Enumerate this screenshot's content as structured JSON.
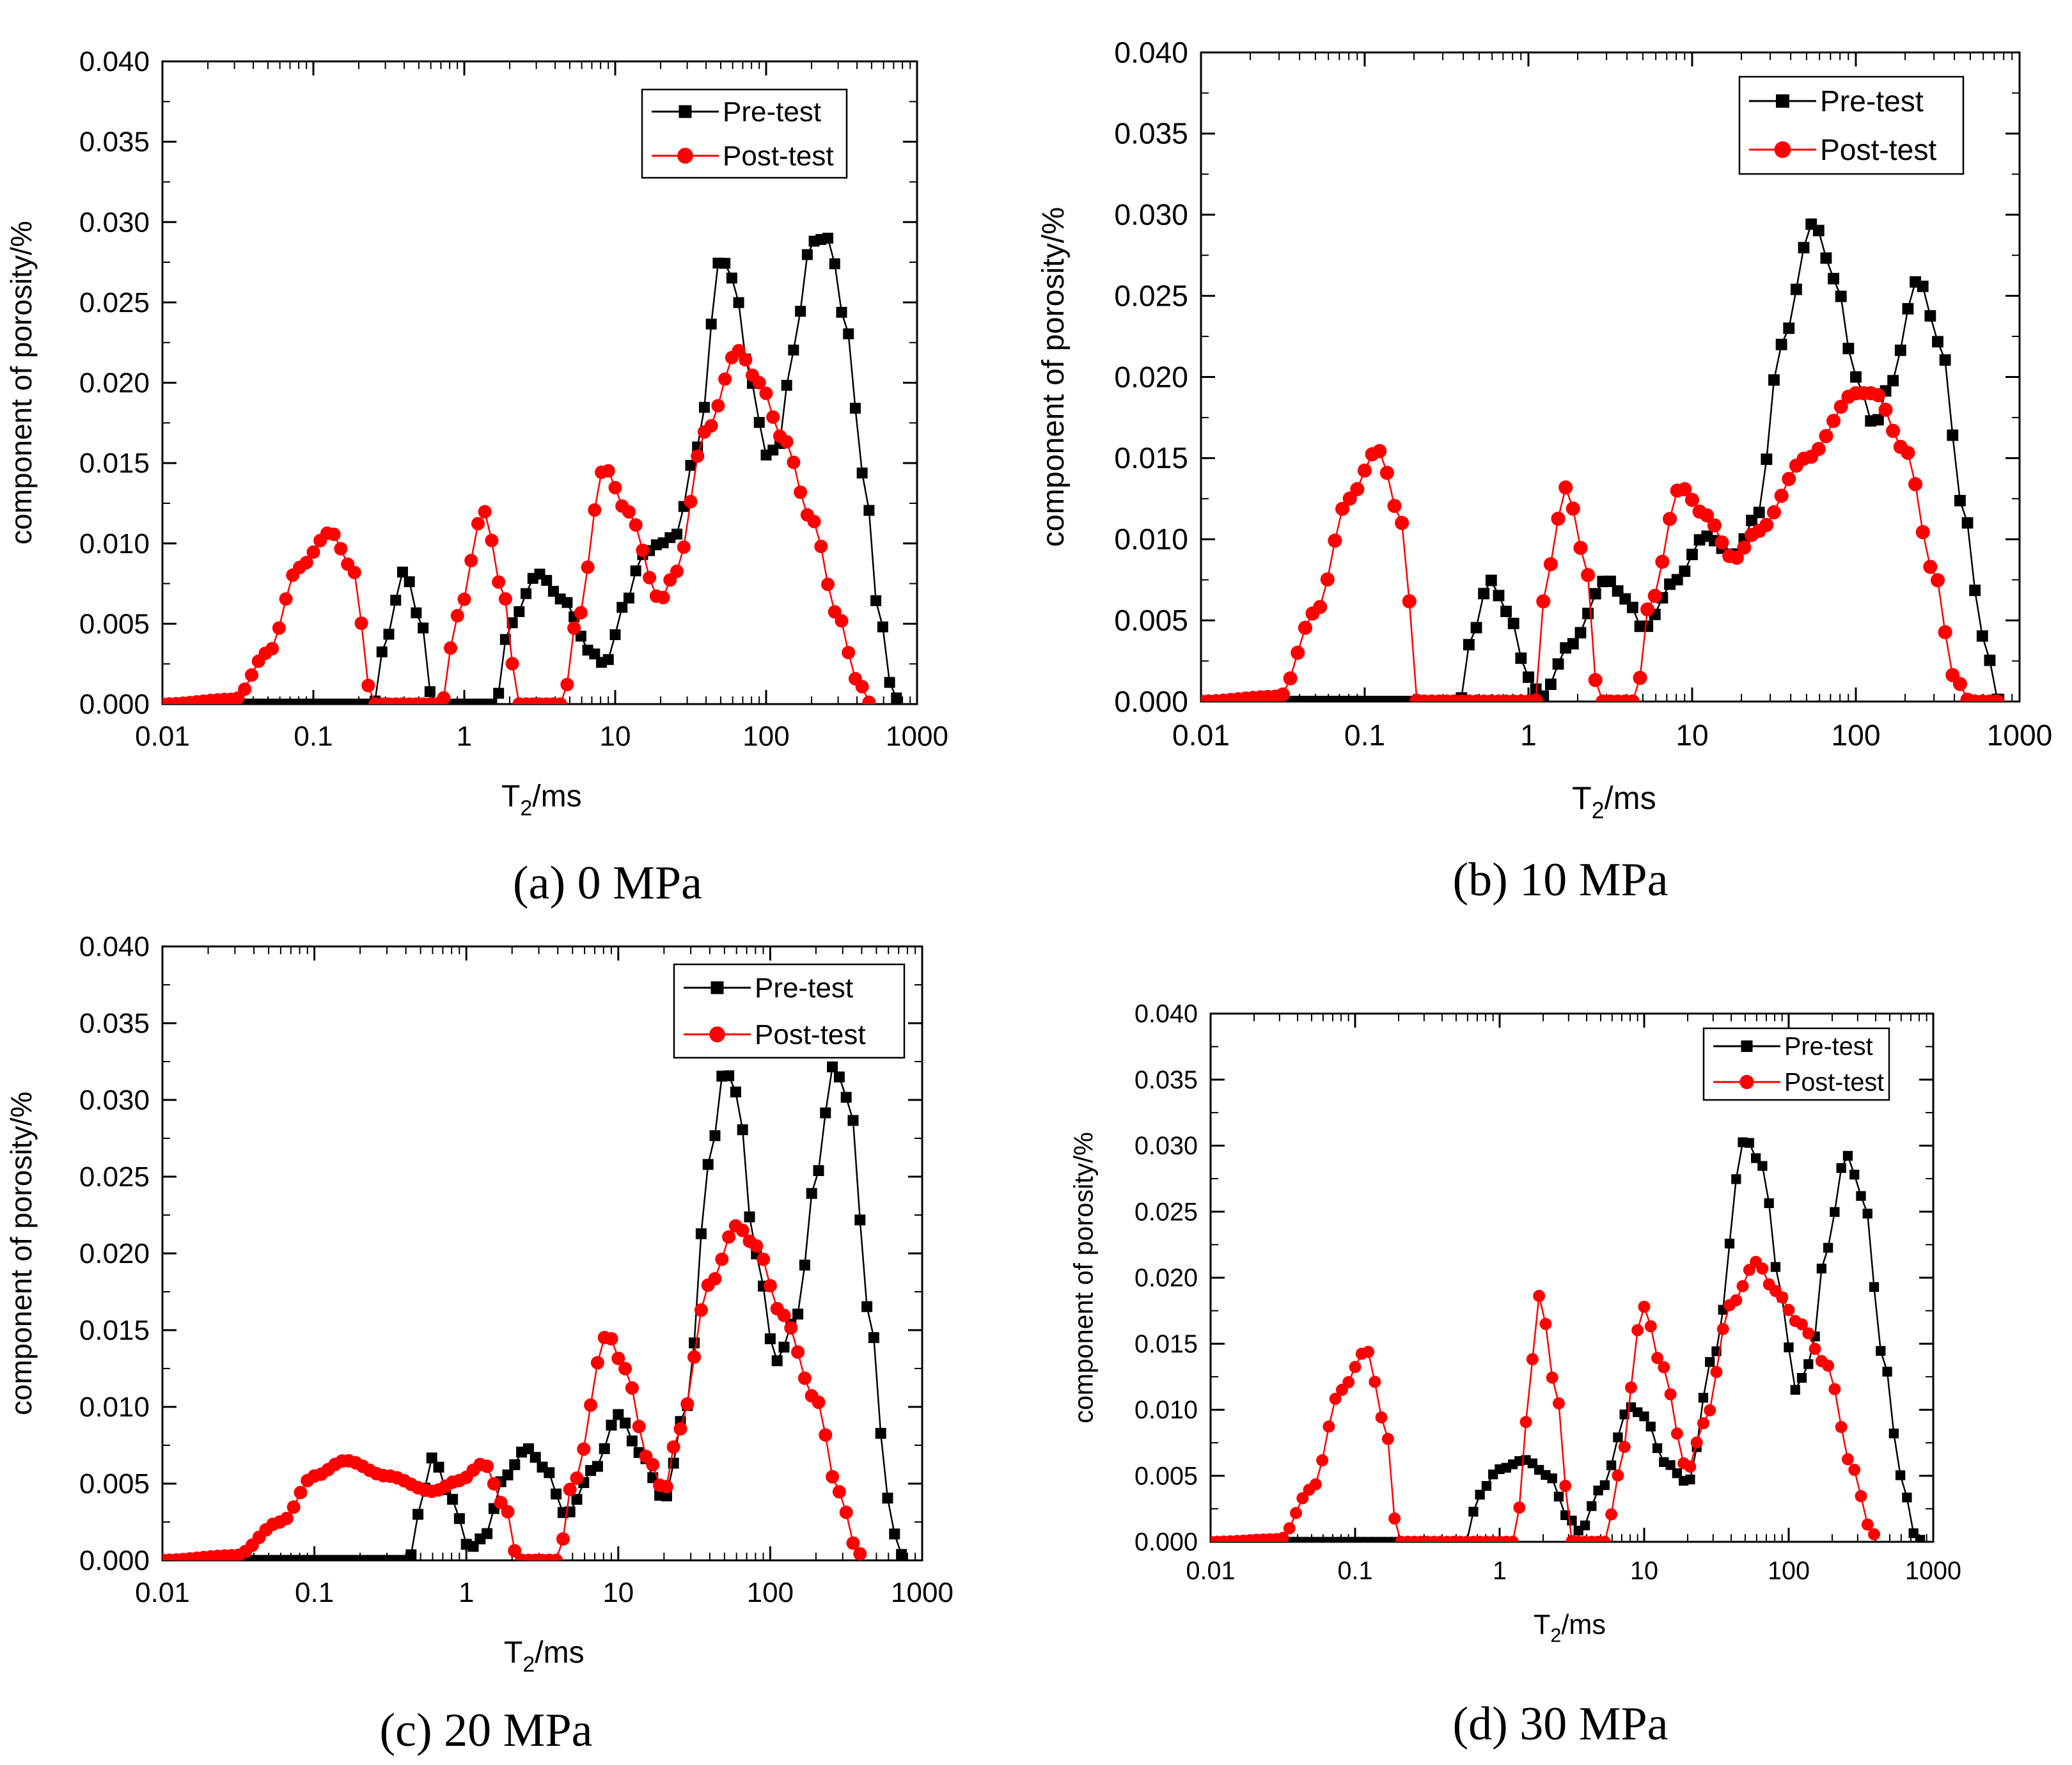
{
  "figure": {
    "colors": {
      "pre": "#000000",
      "post": "#ff0000",
      "axis": "#000000",
      "background": "#ffffff"
    }
  },
  "chart_data": [
    {
      "id": "a",
      "type": "scatter",
      "caption_letter": "(a)",
      "caption_text": " 0 MPa",
      "xlabel_main": "T",
      "xlabel_sub": "2",
      "xlabel_unit": "/ms",
      "ylabel": "component of porosity/%",
      "xscale": "log",
      "xlim": [
        0.01,
        1000
      ],
      "ylim": [
        0,
        0.04
      ],
      "xticks": [
        "0.01",
        "0.1",
        "1",
        "10",
        "100",
        "1000"
      ],
      "yticks": [
        "0.000",
        "0.005",
        "0.010",
        "0.015",
        "0.020",
        "0.025",
        "0.030",
        "0.035",
        "0.040"
      ],
      "legend_position": "top-right",
      "series": [
        {
          "name": "Pre-test",
          "key": "pre",
          "marker": "square",
          "points": [
            [
              0.01,
              0
            ],
            [
              0.25,
              0
            ],
            [
              0.3,
              0.004
            ],
            [
              0.4,
              0.0083
            ],
            [
              0.52,
              0.005
            ],
            [
              0.62,
              0
            ],
            [
              1.6,
              0
            ],
            [
              2.0,
              0.005
            ],
            [
              3.1,
              0.0081
            ],
            [
              4.5,
              0.0065
            ],
            [
              7,
              0.0032
            ],
            [
              8.5,
              0.0025
            ],
            [
              12,
              0.0065
            ],
            [
              15,
              0.0093
            ],
            [
              20,
              0.01
            ],
            [
              25,
              0.0105
            ],
            [
              35,
              0.016
            ],
            [
              50,
              0.0278
            ],
            [
              60,
              0.0265
            ],
            [
              80,
              0.02
            ],
            [
              100,
              0.0155
            ],
            [
              120,
              0.016
            ],
            [
              150,
              0.022
            ],
            [
              200,
              0.0288
            ],
            [
              260,
              0.029
            ],
            [
              330,
              0.024
            ],
            [
              450,
              0.014
            ],
            [
              550,
              0.006
            ],
            [
              700,
              0.0005
            ],
            [
              800,
              0
            ]
          ]
        },
        {
          "name": "Post-test",
          "key": "post",
          "marker": "circle",
          "points": [
            [
              0.01,
              0
            ],
            [
              0.03,
              0.0003
            ],
            [
              0.05,
              0.0032
            ],
            [
              0.08,
              0.0085
            ],
            [
              0.13,
              0.0107
            ],
            [
              0.18,
              0.0085
            ],
            [
              0.25,
              0
            ],
            [
              0.7,
              0
            ],
            [
              0.9,
              0.0055
            ],
            [
              1.35,
              0.012
            ],
            [
              1.8,
              0.007
            ],
            [
              2.3,
              0
            ],
            [
              4.5,
              0
            ],
            [
              5.5,
              0.005
            ],
            [
              8.5,
              0.0147
            ],
            [
              12,
              0.012
            ],
            [
              20,
              0.0065
            ],
            [
              25,
              0.0082
            ],
            [
              40,
              0.017
            ],
            [
              65,
              0.022
            ],
            [
              90,
              0.02
            ],
            [
              130,
              0.0165
            ],
            [
              200,
              0.0115
            ],
            [
              300,
              0.0055
            ],
            [
              400,
              0.0015
            ],
            [
              500,
              0
            ]
          ]
        }
      ]
    },
    {
      "id": "b",
      "type": "scatter",
      "caption_letter": "(b)",
      "caption_text": " 10 MPa",
      "xlabel_main": "T",
      "xlabel_sub": "2",
      "xlabel_unit": "/ms",
      "ylabel": "component of porosity/%",
      "xscale": "log",
      "xlim": [
        0.01,
        1000
      ],
      "ylim": [
        0,
        0.04
      ],
      "xticks": [
        "0.01",
        "0.1",
        "1",
        "10",
        "100",
        "1000"
      ],
      "yticks": [
        "0.000",
        "0.005",
        "0.010",
        "0.015",
        "0.020",
        "0.025",
        "0.030",
        "0.035",
        "0.040"
      ],
      "legend_position": "top-right",
      "series": [
        {
          "name": "Pre-test",
          "key": "pre",
          "marker": "square",
          "points": [
            [
              0.01,
              0
            ],
            [
              0.38,
              0
            ],
            [
              0.45,
              0.004
            ],
            [
              0.58,
              0.0075
            ],
            [
              0.75,
              0.0055
            ],
            [
              1.0,
              0.0015
            ],
            [
              1.2,
              0.0003
            ],
            [
              1.8,
              0.0035
            ],
            [
              3,
              0.0075
            ],
            [
              4,
              0.0063
            ],
            [
              5,
              0.0045
            ],
            [
              8,
              0.0075
            ],
            [
              12,
              0.0102
            ],
            [
              18,
              0.009
            ],
            [
              25,
              0.0115
            ],
            [
              35,
              0.022
            ],
            [
              55,
              0.0295
            ],
            [
              75,
              0.026
            ],
            [
              100,
              0.02
            ],
            [
              130,
              0.017
            ],
            [
              160,
              0.0195
            ],
            [
              240,
              0.026
            ],
            [
              330,
              0.022
            ],
            [
              450,
              0.012
            ],
            [
              600,
              0.004
            ],
            [
              750,
              0
            ]
          ]
        },
        {
          "name": "Post-test",
          "key": "post",
          "marker": "circle",
          "points": [
            [
              0.01,
              0
            ],
            [
              0.03,
              0.0003
            ],
            [
              0.05,
              0.0055
            ],
            [
              0.08,
              0.0125
            ],
            [
              0.12,
              0.0155
            ],
            [
              0.17,
              0.011
            ],
            [
              0.21,
              0
            ],
            [
              1.1,
              0
            ],
            [
              1.3,
              0.008
            ],
            [
              1.7,
              0.0132
            ],
            [
              2.2,
              0.009
            ],
            [
              2.7,
              0
            ],
            [
              4.5,
              0
            ],
            [
              5.5,
              0.006
            ],
            [
              8.5,
              0.0132
            ],
            [
              12,
              0.0115
            ],
            [
              18,
              0.0088
            ],
            [
              25,
              0.0105
            ],
            [
              50,
              0.015
            ],
            [
              100,
              0.019
            ],
            [
              130,
              0.019
            ],
            [
              200,
              0.0155
            ],
            [
              300,
              0.008
            ],
            [
              400,
              0.0015
            ],
            [
              500,
              0
            ],
            [
              800,
              0
            ]
          ]
        }
      ]
    },
    {
      "id": "c",
      "type": "scatter",
      "caption_letter": "(c)",
      "caption_text": " 20 MPa",
      "xlabel_main": "T",
      "xlabel_sub": "2",
      "xlabel_unit": "/ms",
      "ylabel": "component of porosity/%",
      "xscale": "log",
      "xlim": [
        0.01,
        1000
      ],
      "ylim": [
        0,
        0.04
      ],
      "xticks": [
        "0.01",
        "0.1",
        "1",
        "10",
        "100",
        "1000"
      ],
      "yticks": [
        "0.000",
        "0.005",
        "0.010",
        "0.015",
        "0.020",
        "0.025",
        "0.030",
        "0.035",
        "0.040"
      ],
      "legend_position": "top-right",
      "series": [
        {
          "name": "Pre-test",
          "key": "pre",
          "marker": "square",
          "points": [
            [
              0.01,
              0
            ],
            [
              0.42,
              0
            ],
            [
              0.48,
              0.003
            ],
            [
              0.6,
              0.0067
            ],
            [
              0.8,
              0.004
            ],
            [
              1.05,
              0.0008
            ],
            [
              1.3,
              0.0015
            ],
            [
              1.8,
              0.0055
            ],
            [
              2.5,
              0.0073
            ],
            [
              3.3,
              0.006
            ],
            [
              4.5,
              0.003
            ],
            [
              7,
              0.006
            ],
            [
              10,
              0.0095
            ],
            [
              14,
              0.007
            ],
            [
              20,
              0.004
            ],
            [
              28,
              0.01
            ],
            [
              40,
              0.026
            ],
            [
              50,
              0.032
            ],
            [
              60,
              0.0305
            ],
            [
              80,
              0.02
            ],
            [
              110,
              0.013
            ],
            [
              150,
              0.016
            ],
            [
              200,
              0.025
            ],
            [
              260,
              0.0322
            ],
            [
              330,
              0.03
            ],
            [
              450,
              0.016
            ],
            [
              600,
              0.004
            ],
            [
              700,
              0.0005
            ],
            [
              800,
              0
            ]
          ]
        },
        {
          "name": "Post-test",
          "key": "post",
          "marker": "circle",
          "points": [
            [
              0.01,
              0
            ],
            [
              0.03,
              0.0003
            ],
            [
              0.06,
              0.0025
            ],
            [
              0.1,
              0.0055
            ],
            [
              0.16,
              0.0065
            ],
            [
              0.3,
              0.0055
            ],
            [
              0.6,
              0.0045
            ],
            [
              0.9,
              0.0052
            ],
            [
              1.3,
              0.0063
            ],
            [
              1.8,
              0.0035
            ],
            [
              2.2,
              0
            ],
            [
              4,
              0
            ],
            [
              5,
              0.005
            ],
            [
              8.5,
              0.0147
            ],
            [
              11,
              0.0125
            ],
            [
              16,
              0.0065
            ],
            [
              20,
              0.0045
            ],
            [
              25,
              0.0085
            ],
            [
              40,
              0.018
            ],
            [
              60,
              0.0218
            ],
            [
              80,
              0.0205
            ],
            [
              120,
              0.016
            ],
            [
              200,
              0.0105
            ],
            [
              280,
              0.0045
            ],
            [
              380,
              0.0005
            ],
            [
              420,
              0
            ]
          ]
        }
      ]
    },
    {
      "id": "d",
      "type": "scatter",
      "caption_letter": "(d)",
      "caption_text": " 30 MPa",
      "xlabel_main": "T",
      "xlabel_sub": "2",
      "xlabel_unit": "/ms",
      "ylabel": "component of porosity/%",
      "xscale": "log",
      "xlim": [
        0.01,
        1000
      ],
      "ylim": [
        0,
        0.04
      ],
      "xticks": [
        "0.01",
        "0.1",
        "1",
        "10",
        "100",
        "1000"
      ],
      "yticks": [
        "0.000",
        "0.005",
        "0.010",
        "0.015",
        "0.020",
        "0.025",
        "0.030",
        "0.035",
        "0.040"
      ],
      "legend_position": "top-right",
      "series": [
        {
          "name": "Pre-test",
          "key": "pre",
          "marker": "square",
          "points": [
            [
              0.01,
              0
            ],
            [
              0.6,
              0
            ],
            [
              0.7,
              0.0035
            ],
            [
              1,
              0.0055
            ],
            [
              1.5,
              0.0062
            ],
            [
              2.2,
              0.005
            ],
            [
              3,
              0.0018
            ],
            [
              3.6,
              0.0008
            ],
            [
              5,
              0.004
            ],
            [
              8,
              0.0102
            ],
            [
              10,
              0.0095
            ],
            [
              14,
              0.006
            ],
            [
              20,
              0.0045
            ],
            [
              30,
              0.014
            ],
            [
              50,
              0.0305
            ],
            [
              65,
              0.0285
            ],
            [
              90,
              0.0185
            ],
            [
              110,
              0.0115
            ],
            [
              140,
              0.0135
            ],
            [
              180,
              0.022
            ],
            [
              250,
              0.0293
            ],
            [
              330,
              0.026
            ],
            [
              450,
              0.014
            ],
            [
              600,
              0.005
            ],
            [
              750,
              0.0005
            ],
            [
              850,
              0
            ]
          ]
        },
        {
          "name": "Post-test",
          "key": "post",
          "marker": "circle",
          "points": [
            [
              0.01,
              0
            ],
            [
              0.03,
              0.0002
            ],
            [
              0.05,
              0.004
            ],
            [
              0.08,
              0.0115
            ],
            [
              0.12,
              0.0145
            ],
            [
              0.16,
              0.009
            ],
            [
              0.2,
              0
            ],
            [
              1.3,
              0
            ],
            [
              1.5,
              0.009
            ],
            [
              1.9,
              0.0187
            ],
            [
              2.4,
              0.012
            ],
            [
              3.2,
              0
            ],
            [
              5.5,
              0
            ],
            [
              6.5,
              0.005
            ],
            [
              10,
              0.0178
            ],
            [
              13,
              0.0135
            ],
            [
              20,
              0.0055
            ],
            [
              26,
              0.009
            ],
            [
              40,
              0.018
            ],
            [
              60,
              0.0212
            ],
            [
              80,
              0.019
            ],
            [
              120,
              0.0165
            ],
            [
              180,
              0.0135
            ],
            [
              280,
              0.0055
            ],
            [
              360,
              0.0012
            ],
            [
              420,
              0
            ]
          ]
        }
      ]
    }
  ]
}
